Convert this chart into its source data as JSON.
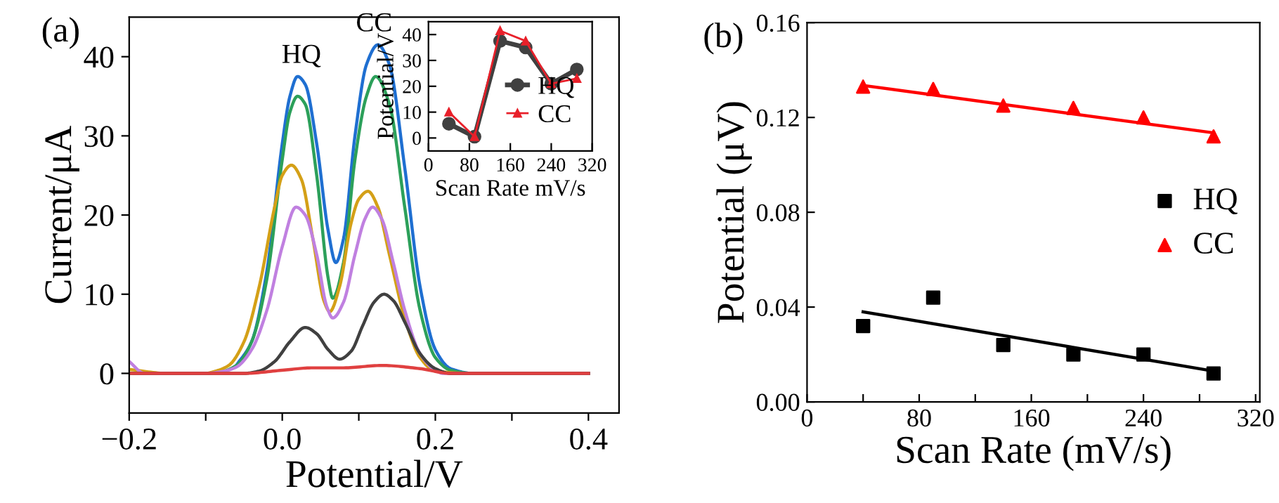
{
  "chart_data": [
    {
      "type": "line",
      "xlabel": "Potential/V",
      "ylabel": "Current/μA",
      "xlim": [
        -0.2,
        0.44
      ],
      "ylim": [
        -5,
        45
      ],
      "xticks": [
        {
          "value": -0.2,
          "label": "−0.2"
        },
        {
          "value": -0.1,
          "label": null
        },
        {
          "value": 0.0,
          "label": "0.0"
        },
        {
          "value": 0.1,
          "label": null
        },
        {
          "value": 0.2,
          "label": "0.2"
        },
        {
          "value": 0.3,
          "label": null
        },
        {
          "value": 0.4,
          "label": "0.4"
        }
      ],
      "yticks": [
        0,
        10,
        20,
        30,
        40
      ],
      "annotations": [
        "(a)",
        {
          "text": "HQ",
          "x": 0.025,
          "y": 37.5
        },
        {
          "text": "CC",
          "x": 0.12,
          "y": 41.5
        }
      ],
      "series": [
        {
          "color": "#1f6fd1",
          "x": [
            -0.06,
            -0.04,
            -0.02,
            0,
            0.01,
            0.02,
            0.03,
            0.045,
            0.06,
            0.07,
            0.08,
            0.095,
            0.11,
            0.125,
            0.14,
            0.16,
            0.18,
            0.2,
            0.22,
            0.25,
            0.4
          ],
          "values": [
            1,
            4,
            13,
            29,
            35,
            37.5,
            36.5,
            29,
            18,
            14,
            17,
            30,
            39,
            41.5,
            39,
            26,
            11,
            3,
            0.6,
            0,
            0
          ]
        },
        {
          "color": "#2ca05a",
          "x": [
            -0.2,
            -0.1,
            -0.08,
            -0.06,
            -0.04,
            -0.02,
            0,
            0.01,
            0.02,
            0.03,
            0.045,
            0.06,
            0.066,
            0.08,
            0.095,
            0.11,
            0.122,
            0.14,
            0.16,
            0.18,
            0.2,
            0.22,
            0.25,
            0.4
          ],
          "values": [
            0,
            0,
            0.2,
            1,
            4,
            12,
            27,
            33,
            35,
            34,
            25,
            12,
            9.5,
            14,
            27,
            35,
            37.5,
            34,
            21,
            8,
            2,
            0.4,
            0,
            0
          ]
        },
        {
          "color": "#d4a017",
          "x": [
            -0.2,
            -0.15,
            -0.1,
            -0.09,
            -0.07,
            -0.05,
            -0.03,
            -0.01,
            0,
            0.012,
            0.025,
            0.04,
            0.055,
            0.062,
            0.075,
            0.09,
            0.1,
            0.112,
            0.125,
            0.14,
            0.16,
            0.18,
            0.2,
            0.25,
            0.4
          ],
          "values": [
            0.5,
            0,
            0,
            0.2,
            1,
            4,
            11,
            21,
            25,
            26.3,
            24.5,
            17,
            9,
            7.8,
            11,
            19,
            22,
            23,
            21,
            15,
            7,
            2,
            0.3,
            0,
            0
          ]
        },
        {
          "color": "#c080e0",
          "x": [
            -0.2,
            -0.18,
            -0.1,
            -0.08,
            -0.06,
            -0.04,
            -0.02,
            0,
            0.018,
            0.03,
            0.045,
            0.058,
            0.066,
            0.08,
            0.095,
            0.108,
            0.118,
            0.13,
            0.145,
            0.16,
            0.18,
            0.2,
            0.21,
            0.25,
            0.4
          ],
          "values": [
            1.5,
            0,
            0,
            0.2,
            0.8,
            3,
            8,
            16,
            21,
            20,
            15,
            8.5,
            7,
            9,
            15,
            19.5,
            21,
            19.5,
            14,
            8,
            2.5,
            0.4,
            0,
            0,
            0
          ]
        },
        {
          "color": "#404040",
          "x": [
            -0.2,
            -0.05,
            -0.03,
            -0.01,
            0.01,
            0.03,
            0.045,
            0.06,
            0.075,
            0.09,
            0.105,
            0.12,
            0.133,
            0.145,
            0.16,
            0.18,
            0.2,
            0.22,
            0.4
          ],
          "values": [
            0,
            0,
            0.3,
            1.5,
            4,
            5.8,
            5,
            3,
            1.8,
            2.8,
            6,
            9,
            10,
            9.2,
            6.5,
            2.5,
            0.6,
            0,
            0
          ]
        },
        {
          "color": "#e04040",
          "x": [
            -0.2,
            -0.05,
            0,
            0.04,
            0.08,
            0.13,
            0.18,
            0.22,
            0.4
          ],
          "values": [
            0,
            0,
            0.4,
            0.7,
            0.7,
            1.0,
            0.6,
            0,
            0
          ]
        }
      ]
    },
    {
      "type": "line",
      "xlabel": "Scan Rate mV/s",
      "ylabel": "Potential/V",
      "xlim": [
        0,
        320
      ],
      "ylim": [
        -5,
        45
      ],
      "xticks": [
        0,
        80,
        160,
        240,
        320
      ],
      "yticks": [
        0,
        10,
        20,
        30,
        40
      ],
      "legend": "right",
      "series": [
        {
          "name": "HQ",
          "color": "#404040",
          "marker": "circle",
          "x": [
            40,
            90,
            140,
            190,
            240,
            290
          ],
          "values": [
            5.5,
            0.5,
            37.5,
            35,
            21,
            26.5
          ]
        },
        {
          "name": "CC",
          "color": "#e8202a",
          "marker": "triangle",
          "x": [
            40,
            90,
            140,
            190,
            240,
            290
          ],
          "values": [
            10,
            0.5,
            41.5,
            37.5,
            21,
            23
          ]
        }
      ]
    },
    {
      "type": "scatter",
      "xlabel": "Scan Rate (mV/s)",
      "ylabel": "Potential (μV)",
      "xlim": [
        0,
        323
      ],
      "ylim": [
        0,
        0.16
      ],
      "xticks": [
        0,
        {
          "value": 40,
          "label": null
        },
        80,
        {
          "value": 120,
          "label": null
        },
        160,
        {
          "value": 200,
          "label": null
        },
        240,
        {
          "value": 280,
          "label": null
        },
        320
      ],
      "yticks": [
        {
          "value": 0,
          "label": "0.00"
        },
        {
          "value": 0.04,
          "label": "0.04"
        },
        {
          "value": 0.08,
          "label": "0.08"
        },
        {
          "value": 0.12,
          "label": "0.12"
        },
        {
          "value": 0.16,
          "label": "0.16"
        }
      ],
      "legend": "right",
      "annotations": [
        "(b)"
      ],
      "series": [
        {
          "name": "HQ",
          "color": "#000000",
          "marker": "square",
          "x": [
            40,
            90,
            140,
            190,
            240,
            290
          ],
          "values": [
            0.032,
            0.044,
            0.024,
            0.02,
            0.02,
            0.012
          ]
        },
        {
          "name": "CC",
          "color": "#ff0000",
          "marker": "triangle",
          "x": [
            40,
            90,
            140,
            190,
            240,
            290
          ],
          "values": [
            0.133,
            0.132,
            0.125,
            0.124,
            0.12,
            0.112
          ]
        },
        {
          "type": "line",
          "color": "#000000",
          "x": [
            40,
            290
          ],
          "values": [
            0.038,
            0.013
          ]
        },
        {
          "type": "line",
          "color": "#ff0000",
          "x": [
            40,
            290
          ],
          "values": [
            0.1335,
            0.1135
          ]
        }
      ]
    }
  ]
}
